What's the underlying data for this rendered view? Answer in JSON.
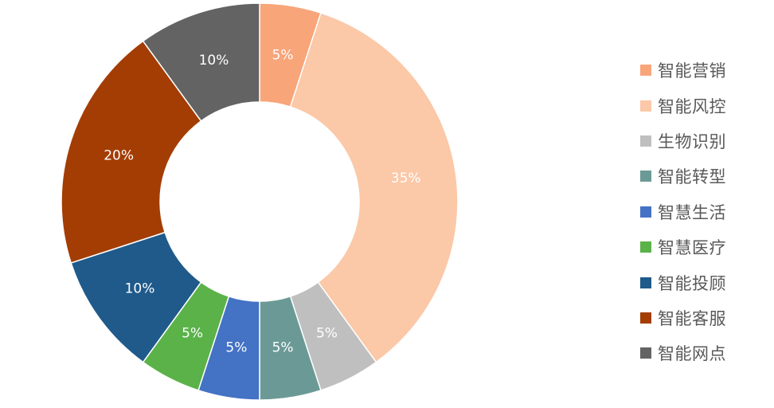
{
  "chart_data": {
    "type": "pie",
    "donut": true,
    "legend_position": "right",
    "slices": [
      {
        "label": "智能营销",
        "value": 5,
        "display": "5%",
        "color": "#F8A57A"
      },
      {
        "label": "智能风控",
        "value": 35,
        "display": "35%",
        "color": "#FBC8A8"
      },
      {
        "label": "生物识别",
        "value": 5,
        "display": "5%",
        "color": "#BFBFBF"
      },
      {
        "label": "智能转型",
        "value": 5,
        "display": "5%",
        "color": "#6B9A96"
      },
      {
        "label": "智慧生活",
        "value": 5,
        "display": "5%",
        "color": "#4472C4"
      },
      {
        "label": "智慧医疗",
        "value": 5,
        "display": "5%",
        "color": "#5AB249"
      },
      {
        "label": "智能投顾",
        "value": 10,
        "display": "10%",
        "color": "#1F5A8B"
      },
      {
        "label": "智能客服",
        "value": 20,
        "display": "20%",
        "color": "#A33D04"
      },
      {
        "label": "智能网点",
        "value": 10,
        "display": "10%",
        "color": "#636363"
      }
    ]
  }
}
